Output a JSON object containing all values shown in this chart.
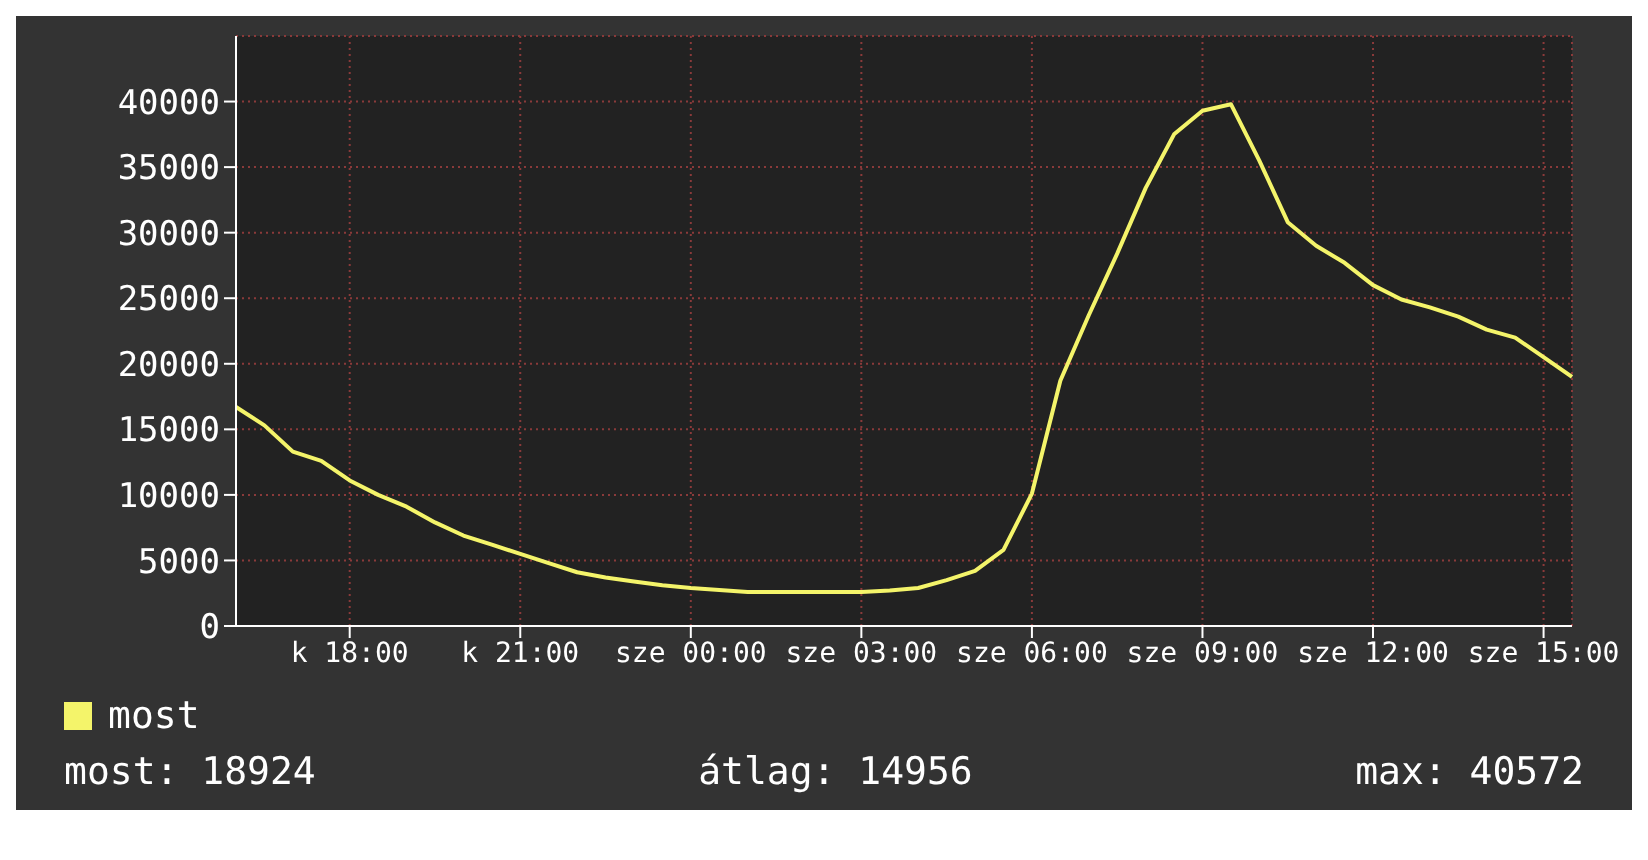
{
  "chart_data": {
    "type": "line",
    "categories": [
      null,
      null,
      null,
      null,
      "k 18:00",
      null,
      null,
      null,
      null,
      null,
      "k 21:00",
      null,
      null,
      null,
      null,
      null,
      "sze 00:00",
      null,
      null,
      null,
      null,
      null,
      "sze 03:00",
      null,
      null,
      null,
      null,
      null,
      "sze 06:00",
      null,
      null,
      null,
      null,
      null,
      "sze 09:00",
      null,
      null,
      null,
      null,
      null,
      "sze 12:00",
      null,
      null,
      null,
      null,
      null,
      "sze 15:00",
      null
    ],
    "series": [
      {
        "name": "most",
        "color": "#f4f46a",
        "values": [
          16700,
          15300,
          13300,
          12600,
          11100,
          10000,
          9100,
          7900,
          6900,
          6200,
          5500,
          4800,
          4100,
          3700,
          3400,
          3100,
          2900,
          2750,
          2600,
          2600,
          2600,
          2600,
          2600,
          2700,
          2900,
          3500,
          4200,
          5800,
          10100,
          18700,
          23700,
          28400,
          33400,
          37500,
          39300,
          39800,
          35500,
          30800,
          29000,
          27700,
          26000,
          24900,
          24300,
          23600,
          22600,
          22000,
          20500,
          19000
        ]
      }
    ],
    "ylim": [
      0,
      45000
    ],
    "yticks": [
      0,
      5000,
      10000,
      15000,
      20000,
      25000,
      30000,
      35000,
      40000
    ],
    "grid": true,
    "legend": "bottom",
    "marker": "none",
    "line_style": "solid",
    "annotations": [
      "most: 18924",
      "átlag: 14956",
      "max: 40572"
    ]
  }
}
